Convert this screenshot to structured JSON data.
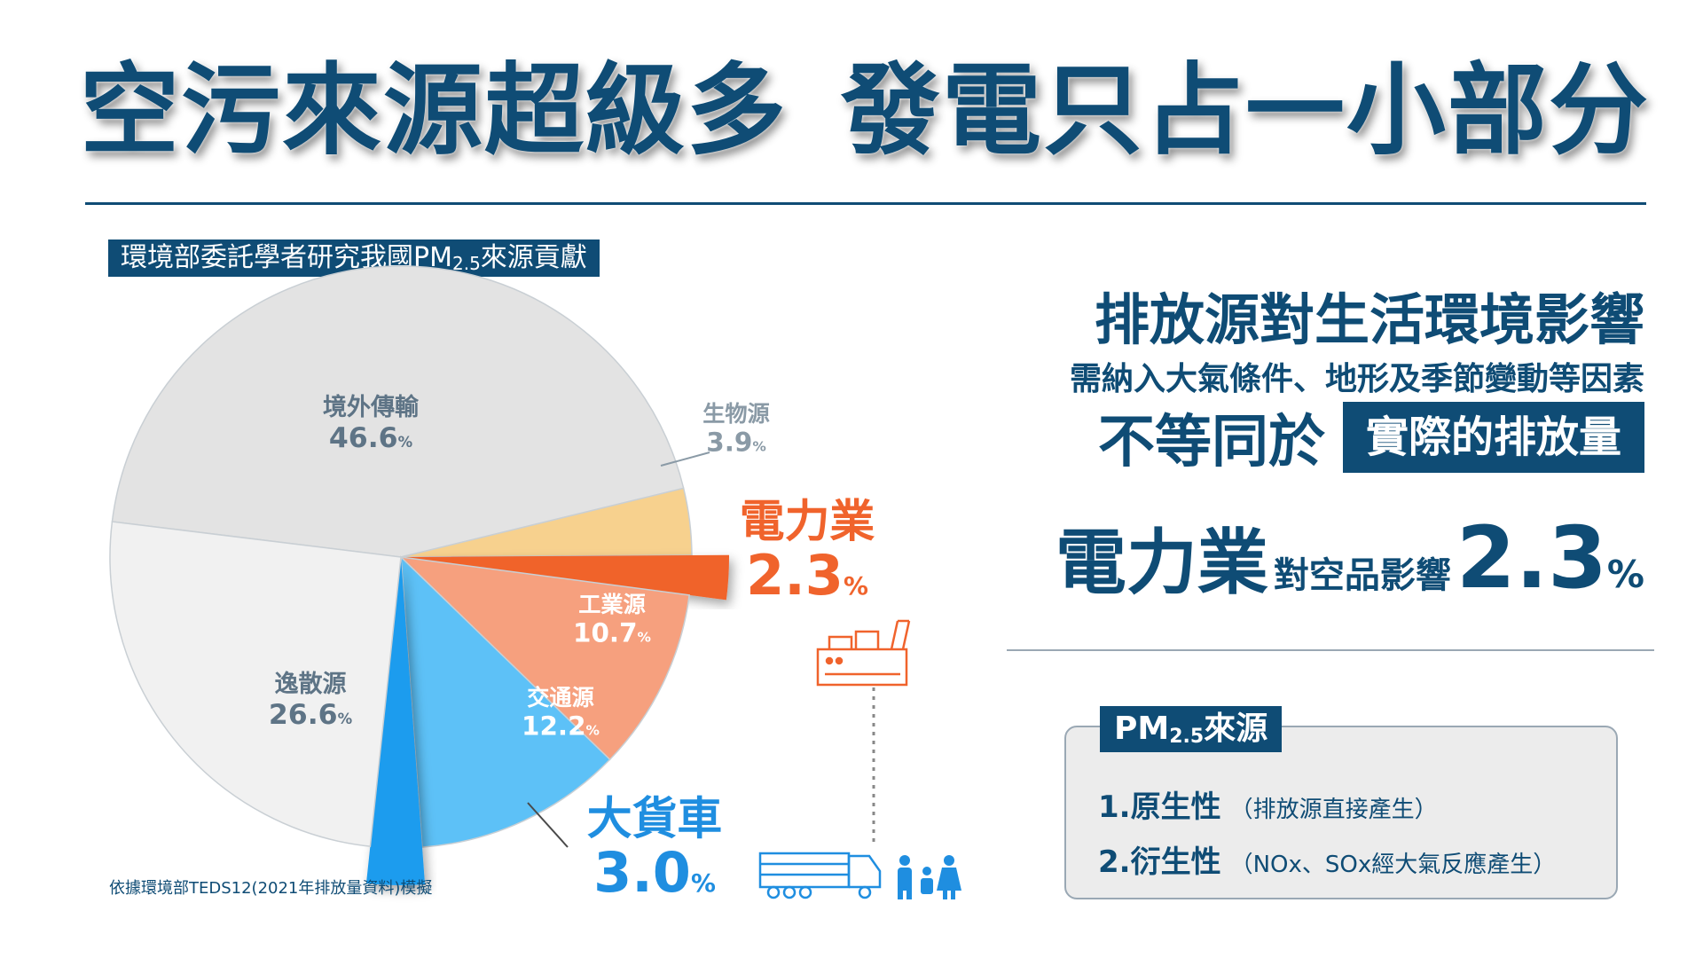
{
  "headline": {
    "part1": "空污來源超級多",
    "part2": "發電只占一小部分"
  },
  "chart_label": {
    "text": "環境部委託學者研究我國PM",
    "sub": "2.5",
    "suffix": "來源貢獻"
  },
  "chart_data": {
    "type": "pie",
    "title": "",
    "slices": [
      {
        "label": "境外傳輸",
        "value": 46.6,
        "display": "46.6",
        "color": "#e3e3e3",
        "text_color": "#5e7486"
      },
      {
        "label": "生物源",
        "value": 3.9,
        "display": "3.9",
        "color": "#f7d18e",
        "text_color": "#8a9aa6"
      },
      {
        "label": "電力業",
        "value": 2.3,
        "display": "2.3",
        "color": "#f0632c",
        "text_color": "#f0632c",
        "exploded": true
      },
      {
        "label": "工業源",
        "value": 10.7,
        "display": "10.7",
        "color": "#f6a07e",
        "text_color": "#ffffff"
      },
      {
        "label": "交通源",
        "value": 12.2,
        "display": "12.2",
        "color": "#5dc1f7",
        "text_color": "#ffffff"
      },
      {
        "label": "大貨車",
        "value": 3.0,
        "display": "3.0",
        "color": "#1f9cee",
        "text_color": "#1f8ee0",
        "exploded": true
      },
      {
        "label": "逸散源",
        "value": 26.6,
        "display": "26.6",
        "color": "#f1f1f1",
        "text_color": "#5e7486"
      }
    ],
    "percent_sign": "%"
  },
  "source_note": "依據環境部TEDS12(2021年排放量資料)模擬",
  "right_panel": {
    "heading": "排放源對生活環境影響",
    "sub": "需納入大氣條件、地形及季節變動等因素",
    "line3_text": "不等同於",
    "line3_box": "實際的排放量",
    "line4_big": "電力業",
    "line4_mid": "對空品影響",
    "line4_num": "2.3",
    "line4_pct": "%"
  },
  "pm_box": {
    "tag": "PM",
    "tag_sub": "2.5",
    "tag_suffix": "來源",
    "items": [
      {
        "lead": "1.原生性",
        "note": "（排放源直接產生）"
      },
      {
        "lead": "2.衍生性",
        "note": "（NOx、SOx經大氣反應產生）"
      }
    ]
  },
  "colors": {
    "navy": "#0f4c75",
    "orange": "#f0632c",
    "blue": "#1f8ee0"
  }
}
